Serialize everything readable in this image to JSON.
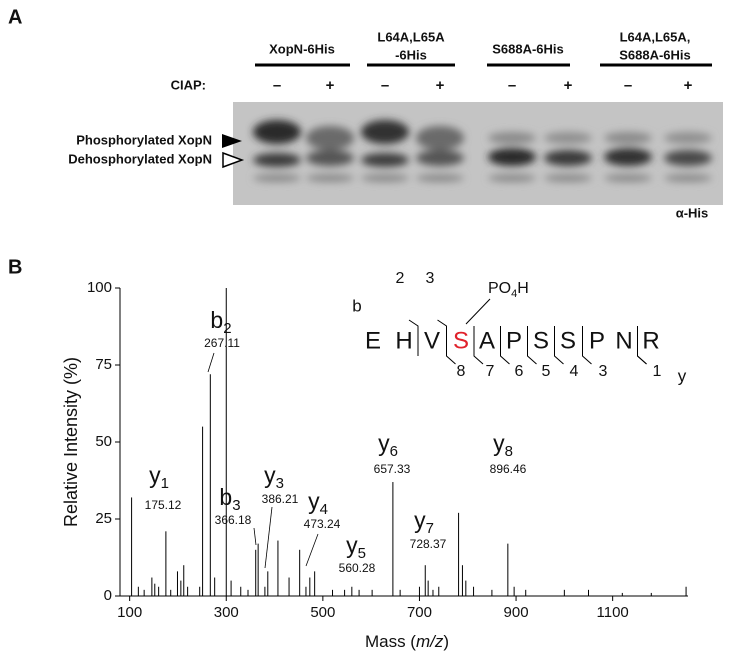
{
  "panel_a": {
    "label": "A",
    "groups": [
      [
        "XopN-6His"
      ],
      [
        "L64A,L65A",
        "-6His"
      ],
      [
        "S688A-6His"
      ],
      [
        "L64A,L65A,",
        "S688A-6His"
      ]
    ],
    "ciap_label": "CIAP:",
    "lanes": [
      "–",
      "+",
      "–",
      "+",
      "–",
      "+",
      "–",
      "+"
    ],
    "band_labels": [
      "Phosphorylated XopN",
      "Dehosphorylated XopN"
    ],
    "antibody": "α-His"
  },
  "chart_data": {
    "type": "spectrum",
    "panel_label": "B",
    "x_label": [
      "Mass (",
      "m/z",
      ")"
    ],
    "y_label": "Relative Intensity (%)",
    "x": [
      104,
      118,
      130,
      146,
      152,
      160,
      175,
      185,
      199,
      206,
      212,
      220,
      245,
      251,
      267,
      276,
      300,
      310,
      330,
      345,
      361,
      366,
      380,
      386,
      407,
      430,
      452,
      465,
      473,
      483,
      520,
      545,
      560,
      575,
      602,
      645,
      660,
      700,
      712,
      718,
      728,
      740,
      781,
      789,
      796,
      812,
      850,
      883,
      896,
      920,
      1000,
      1050,
      1120,
      1180,
      1252
    ],
    "values": [
      32,
      3,
      2,
      6,
      4,
      3,
      21,
      2,
      8,
      5,
      10,
      3,
      3,
      55,
      72,
      6,
      100,
      5,
      3,
      2,
      15,
      17,
      3,
      8,
      18,
      6,
      15,
      3,
      6,
      8,
      2,
      2,
      3,
      2,
      2,
      37,
      2,
      3,
      10,
      5,
      2,
      3,
      27,
      10,
      5,
      3,
      2,
      17,
      3,
      2,
      2,
      2,
      1,
      1,
      3
    ],
    "color": "#000000",
    "xlim": [
      80,
      1256
    ],
    "ylim": [
      0,
      100
    ],
    "xticks": [
      100,
      300,
      500,
      700,
      900,
      1100
    ],
    "yticks": [
      0,
      25,
      50,
      75,
      100
    ],
    "annotations": [
      {
        "ion": "y",
        "sub": "1",
        "mz": "175.12"
      },
      {
        "ion": "b",
        "sub": "2",
        "mz": "267.11"
      },
      {
        "ion": "b",
        "sub": "3",
        "mz": "366.18"
      },
      {
        "ion": "y",
        "sub": "3",
        "mz": "386.21"
      },
      {
        "ion": "y",
        "sub": "4",
        "mz": "473.24"
      },
      {
        "ion": "y",
        "sub": "5",
        "mz": "560.28"
      },
      {
        "ion": "y",
        "sub": "6",
        "mz": "657.33"
      },
      {
        "ion": "y",
        "sub": "7",
        "mz": "728.37"
      },
      {
        "ion": "y",
        "sub": "8",
        "mz": "896.46"
      }
    ],
    "sequence": {
      "residues": [
        "E",
        "H",
        "V",
        "S",
        "A",
        "P",
        "S",
        "S",
        "P",
        "N",
        "R"
      ],
      "modification": [
        "PO",
        "4",
        "H"
      ],
      "b_label": "b",
      "b_numbers": [
        "2",
        "3"
      ],
      "y_label": "y",
      "y_numbers": [
        "8",
        "7",
        "6",
        "5",
        "4",
        "3",
        "1"
      ]
    }
  }
}
